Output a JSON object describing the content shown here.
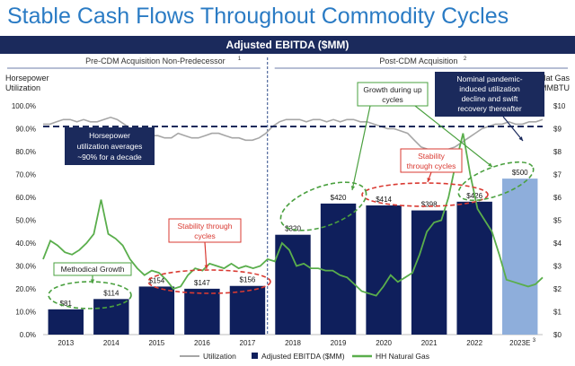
{
  "title": "Stable Cash Flows Throughout Commodity Cycles",
  "banner": "Adjusted EBITDA ($MM)",
  "periods": {
    "pre": "Pre-CDM Acquisition Non-Predecessor",
    "pre_sup": "1",
    "post": "Post-CDM Acquisition",
    "post_sup": "2"
  },
  "left_axis_title": [
    "Horsepower",
    "Utilization"
  ],
  "right_axis_title": [
    "HH Nat Gas",
    "$/MMBTU"
  ],
  "annotations": {
    "hp_util": [
      "Horsepower",
      "utilization averages",
      "~90% for a decade"
    ],
    "pandemic": [
      "Nominal pandemic-",
      "induced utilization",
      "decline and swift",
      "recovery thereafter"
    ],
    "growth_up": [
      "Growth during up",
      "cycles"
    ],
    "methodical": "Methodical Growth",
    "stability_1": [
      "Stability through",
      "cycles"
    ],
    "stability_2": [
      "Stability",
      "through cycles"
    ]
  },
  "chart_data": {
    "type": "bar",
    "categories": [
      "2013",
      "2014",
      "2015",
      "2016",
      "2017",
      "2018",
      "2019",
      "2020",
      "2021",
      "2022",
      "2023E"
    ],
    "category_sup": {
      "2023E": "3"
    },
    "bar_series": {
      "name": "Adjusted EBITDA ($MM)",
      "values": [
        81,
        114,
        154,
        147,
        156,
        320,
        420,
        414,
        398,
        426,
        500
      ],
      "labels": [
        "$81",
        "$114",
        "$154",
        "$147",
        "$156",
        "$320",
        "$420",
        "$414",
        "$398",
        "$426",
        "$500"
      ],
      "estimate_index": 10
    },
    "utilization_series": {
      "name": "Utilization",
      "axis": "left",
      "values": [
        92,
        92,
        93,
        94,
        94,
        93,
        94,
        93,
        93,
        94,
        95,
        94,
        92,
        90,
        89,
        88,
        87,
        87,
        86,
        86,
        88,
        87,
        86,
        86,
        87,
        88,
        88,
        87,
        86,
        86,
        85,
        85,
        86,
        88,
        91,
        93,
        94,
        94,
        94,
        93,
        94,
        94,
        93,
        94,
        93,
        94,
        94,
        93,
        93,
        92,
        91,
        90,
        90,
        89,
        88,
        85,
        82,
        81,
        80,
        80,
        81,
        82,
        84,
        86,
        88,
        90,
        91,
        92,
        92,
        93,
        92,
        92,
        93,
        93,
        94
      ]
    },
    "gas_series": {
      "name": "HH Natural Gas",
      "axis": "right",
      "values": [
        3.3,
        4.1,
        3.9,
        3.6,
        3.5,
        3.7,
        4.0,
        4.4,
        5.9,
        4.4,
        4.2,
        3.9,
        3.3,
        2.9,
        2.6,
        2.8,
        2.7,
        2.4,
        2.0,
        2.1,
        2.6,
        2.9,
        2.8,
        3.1,
        3.0,
        2.9,
        3.1,
        2.9,
        3.0,
        2.9,
        3.0,
        3.3,
        3.2,
        4.0,
        3.7,
        3.0,
        3.1,
        2.9,
        2.9,
        2.8,
        2.8,
        2.6,
        2.5,
        2.2,
        1.9,
        1.8,
        1.7,
        2.1,
        2.6,
        2.3,
        2.5,
        2.7,
        3.5,
        4.5,
        4.9,
        5.0,
        6.0,
        7.5,
        8.8,
        7.0,
        5.5,
        5.0,
        4.5,
        3.5,
        2.4,
        2.3,
        2.2,
        2.1,
        2.2,
        2.5
      ]
    },
    "reference_line": {
      "axis": "left",
      "value": 91
    },
    "left_axis": {
      "min": 0,
      "max": 100,
      "ticks": [
        "0.0%",
        "10.0%",
        "20.0%",
        "30.0%",
        "40.0%",
        "50.0%",
        "60.0%",
        "70.0%",
        "80.0%",
        "90.0%",
        "100.0%"
      ]
    },
    "right_axis": {
      "min": 0,
      "max": 10,
      "ticks": [
        "$0",
        "$1",
        "$2",
        "$3",
        "$4",
        "$5",
        "$6",
        "$7",
        "$8",
        "$9",
        "$10"
      ]
    },
    "legend": {
      "position": "bottom",
      "items": [
        "Utilization",
        "Adjusted EBITDA ($MM)",
        "HH Natural Gas"
      ]
    },
    "colors": {
      "bar": "#0f1f5c",
      "bar_estimate": "#8eaedb",
      "utilization": "#a6a6a6",
      "gas": "#5aae4c",
      "reference": "#1b2a5c",
      "divider": "#2e4b8a",
      "annotation_blue": "#1b2a5c",
      "annotation_red": "#d93a32",
      "annotation_green": "#4aa03f"
    }
  }
}
